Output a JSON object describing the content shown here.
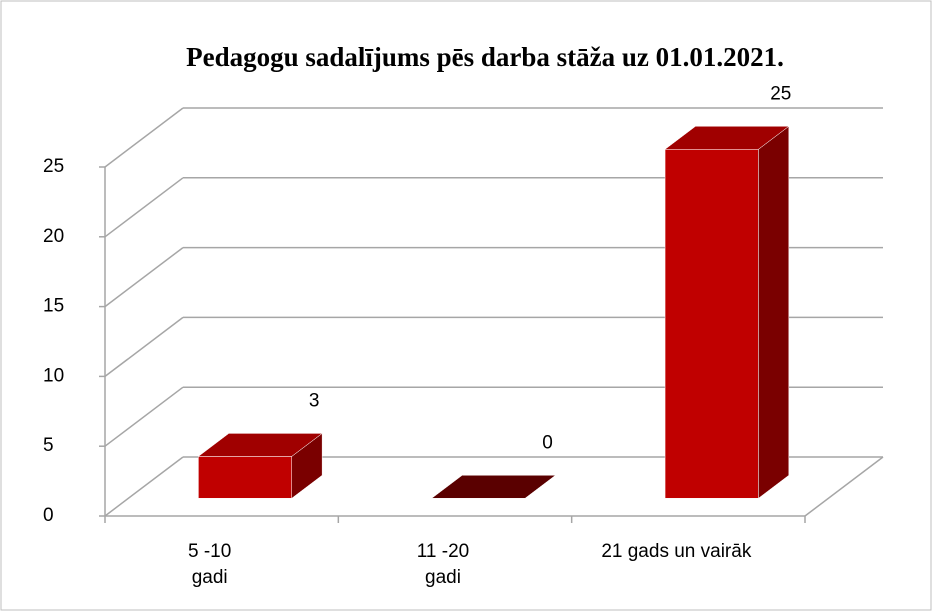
{
  "chart_data": {
    "type": "bar3d",
    "title": "Pedagogu sadalījums pēs darba stāža uz 01.01.2021.",
    "categories": [
      "5 -10 gadi",
      "11 -20 gadi",
      "21 gads un vairāk"
    ],
    "values": [
      3,
      0,
      25
    ],
    "color": "#c00000",
    "ylim": [
      0,
      25
    ],
    "yticks": [
      0,
      5,
      10,
      15,
      20,
      25
    ],
    "grid": true
  }
}
